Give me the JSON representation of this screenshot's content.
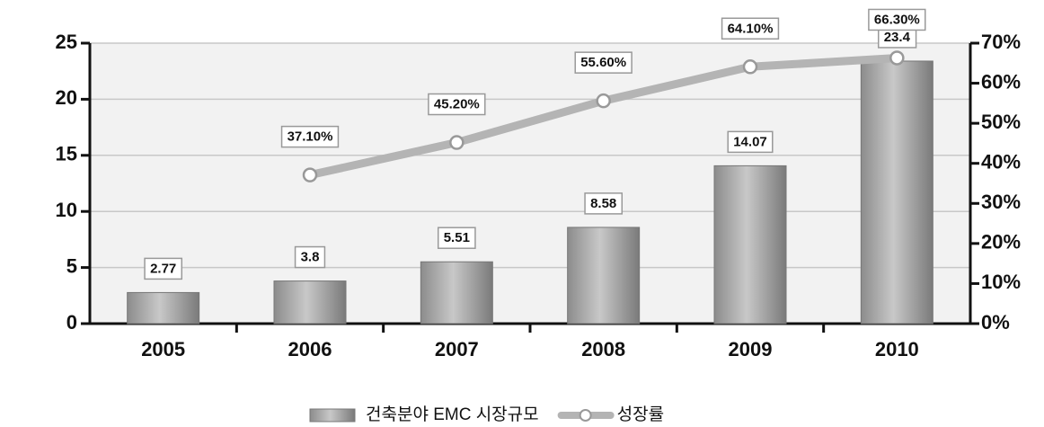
{
  "chart_data": {
    "type": "bar",
    "categories": [
      "2005",
      "2006",
      "2007",
      "2008",
      "2009",
      "2010"
    ],
    "series": [
      {
        "name": "건축분야 EMC 시장규모",
        "type": "bar",
        "color": "#a8a8a8",
        "values": [
          2.77,
          3.8,
          5.51,
          8.58,
          14.07,
          23.4
        ]
      },
      {
        "name": "성장률",
        "type": "line",
        "axis": "y2",
        "color": "#b4b4b4",
        "values": [
          null,
          37.1,
          45.2,
          55.6,
          64.1,
          66.3
        ],
        "value_labels": [
          null,
          "37.10%",
          "45.20%",
          "55.60%",
          "64.10%",
          "66.30%"
        ]
      }
    ],
    "ylim": [
      0,
      25
    ],
    "yticks": [
      0,
      5,
      10,
      15,
      20,
      25
    ],
    "y2lim": [
      0,
      70
    ],
    "y2ticks": [
      {
        "value": 0,
        "label": "0%"
      },
      {
        "value": 10,
        "label": "10%"
      },
      {
        "value": 20,
        "label": "20%"
      },
      {
        "value": 30,
        "label": "30%"
      },
      {
        "value": 40,
        "label": "40%"
      },
      {
        "value": 50,
        "label": "50%"
      },
      {
        "value": 60,
        "label": "60%"
      },
      {
        "value": 70,
        "label": "70%"
      }
    ],
    "grid": true,
    "legend": "bottom"
  }
}
